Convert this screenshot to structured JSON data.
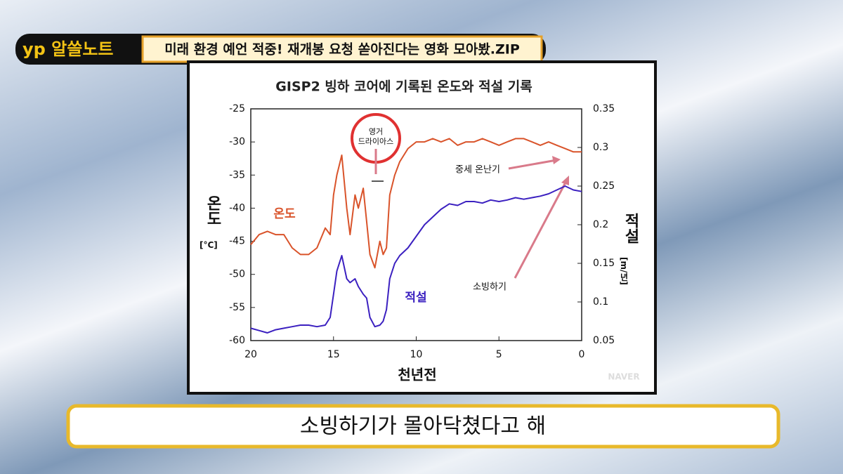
{
  "header": {
    "logo": "yp 알쓸노트",
    "title": "미래 환경 예언 적중! 재개봉 요청 쏟아진다는 영화 모아봤.ZIP"
  },
  "subtitle": "소빙하기가 몰아닥쳤다고 해",
  "watermark": "NAVER",
  "chart_data": {
    "type": "line",
    "title": "GISP2 빙하 코어에 기록된 온도와 적설 기록",
    "x_label": "천년전",
    "y_label": "온도",
    "y_unit": "[°C]",
    "y2_label": "적설",
    "y2_unit": "[m/년]",
    "xlim": [
      20,
      0
    ],
    "xticks": [
      20,
      15,
      10,
      5,
      0
    ],
    "ylim": [
      -60,
      -25
    ],
    "yticks": [
      -60,
      -55,
      -50,
      -45,
      -40,
      -35,
      -30,
      -25
    ],
    "y2lim": [
      0.05,
      0.35
    ],
    "y2ticks": [
      0.05,
      0.1,
      0.15,
      0.2,
      0.25,
      0.3,
      0.35
    ],
    "x": [
      20,
      19.5,
      19,
      18.5,
      18,
      17.5,
      17,
      16.5,
      16,
      15.5,
      15.2,
      15,
      14.8,
      14.5,
      14.2,
      14,
      13.7,
      13.5,
      13.2,
      13,
      12.8,
      12.5,
      12.2,
      12,
      11.8,
      11.6,
      11.3,
      11,
      10.5,
      10,
      9.5,
      9,
      8.5,
      8,
      7.5,
      7,
      6.5,
      6,
      5.5,
      5,
      4.5,
      4,
      3.5,
      3,
      2.5,
      2,
      1.5,
      1,
      0.5,
      0
    ],
    "series": [
      {
        "name": "온도",
        "color": "#d9532a",
        "values": [
          -45.5,
          -44,
          -43.5,
          -44,
          -44,
          -46,
          -47,
          -47,
          -46,
          -43,
          -44,
          -38,
          -35,
          -32,
          -40,
          -44,
          -38,
          -40,
          -37,
          -42,
          -47,
          -49,
          -45,
          -47,
          -46,
          -38,
          -35,
          -33,
          -31,
          -30,
          -30,
          -29.5,
          -30,
          -29.5,
          -30.5,
          -30,
          -30,
          -29.5,
          -30,
          -30.5,
          -30,
          -29.5,
          -29.5,
          -30,
          -30.5,
          -30,
          -30.5,
          -31,
          -31.5,
          -31.5
        ]
      },
      {
        "name": "적설",
        "color": "#3b20c0",
        "axis": "y2",
        "values": [
          0.066,
          0.063,
          0.06,
          0.064,
          0.066,
          0.068,
          0.07,
          0.07,
          0.068,
          0.07,
          0.08,
          0.11,
          0.14,
          0.16,
          0.13,
          0.125,
          0.13,
          0.12,
          0.11,
          0.105,
          0.08,
          0.068,
          0.07,
          0.075,
          0.09,
          0.13,
          0.15,
          0.16,
          0.17,
          0.185,
          0.2,
          0.21,
          0.22,
          0.227,
          0.225,
          0.23,
          0.23,
          0.228,
          0.232,
          0.23,
          0.232,
          0.235,
          0.233,
          0.235,
          0.237,
          0.24,
          0.245,
          0.25,
          0.245,
          0.243
        ]
      }
    ],
    "annotations": [
      "영거",
      "드라이아스",
      "중세 온난기",
      "소빙하기"
    ]
  }
}
